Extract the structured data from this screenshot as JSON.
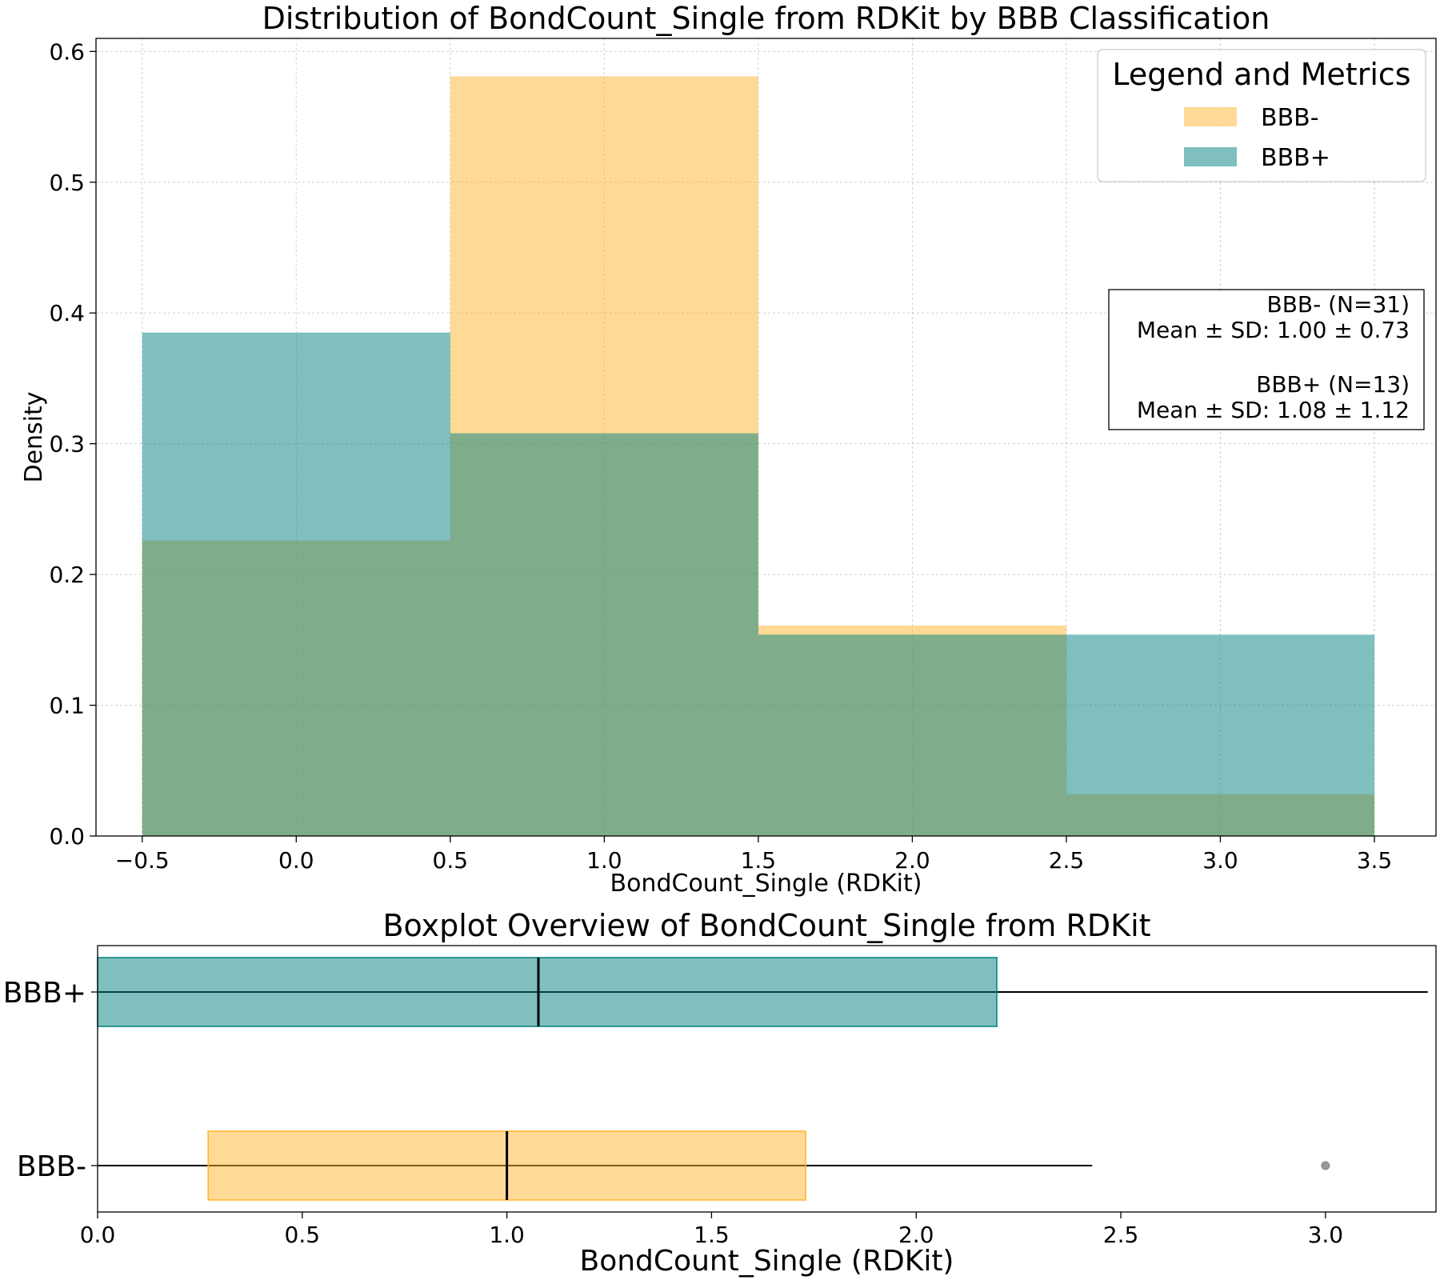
{
  "colors": {
    "bbb_minus": "#fdb52d",
    "bbb_plus": "#008080",
    "overlap_note": "alpha blended"
  },
  "chart_data": [
    {
      "type": "histogram",
      "title": "Distribution of BondCount_Single from RDKit by BBB Classification",
      "xlabel": "BondCount_Single (RDKit)",
      "ylabel": "Density",
      "xlim": [
        -0.65,
        3.7
      ],
      "ylim": [
        0,
        0.61
      ],
      "xticks": [
        -0.5,
        0.0,
        0.5,
        1.0,
        1.5,
        2.0,
        2.5,
        3.0,
        3.5
      ],
      "xtick_labels": [
        "−0.5",
        "0.0",
        "0.5",
        "1.0",
        "1.5",
        "2.0",
        "2.5",
        "3.0",
        "3.5"
      ],
      "yticks": [
        0.0,
        0.1,
        0.2,
        0.3,
        0.4,
        0.5,
        0.6
      ],
      "ytick_labels": [
        "0.0",
        "0.1",
        "0.2",
        "0.3",
        "0.4",
        "0.5",
        "0.6"
      ],
      "grid": true,
      "bin_edges": [
        -0.5,
        0.5,
        1.5,
        2.5,
        3.5
      ],
      "series": [
        {
          "name": "BBB-",
          "values": [
            0.226,
            0.581,
            0.161,
            0.032
          ]
        },
        {
          "name": "BBB+",
          "values": [
            0.385,
            0.308,
            0.154,
            0.154
          ]
        }
      ],
      "legend": {
        "title": "Legend and Metrics",
        "position": "top-right",
        "entries": [
          "BBB-",
          "BBB+"
        ]
      },
      "annotation": {
        "lines": [
          "BBB- (N=31)",
          "Mean ± SD: 1.00 ± 0.73",
          "",
          "BBB+ (N=13)",
          "Mean ± SD: 1.08 ± 1.12"
        ]
      }
    },
    {
      "type": "boxplot",
      "title": "Boxplot Overview of BondCount_Single from RDKit",
      "xlabel": "BondCount_Single (RDKit)",
      "xlim": [
        0,
        3.27
      ],
      "xticks": [
        0.0,
        0.5,
        1.0,
        1.5,
        2.0,
        2.5,
        3.0
      ],
      "xtick_labels": [
        "0.0",
        "0.5",
        "1.0",
        "1.5",
        "2.0",
        "2.5",
        "3.0"
      ],
      "categories": [
        "BBB+",
        "BBB-"
      ],
      "boxes": [
        {
          "name": "BBB+",
          "whisker_low": -0.04,
          "q1": 0.0,
          "median": 1.077,
          "q3": 2.197,
          "whisker_high": 3.25
        },
        {
          "name": "BBB-",
          "whisker_low": 0.0,
          "q1": 0.27,
          "median": 1.0,
          "q3": 1.73,
          "whisker_high": 2.43,
          "outliers": [
            3.0
          ]
        }
      ]
    }
  ]
}
